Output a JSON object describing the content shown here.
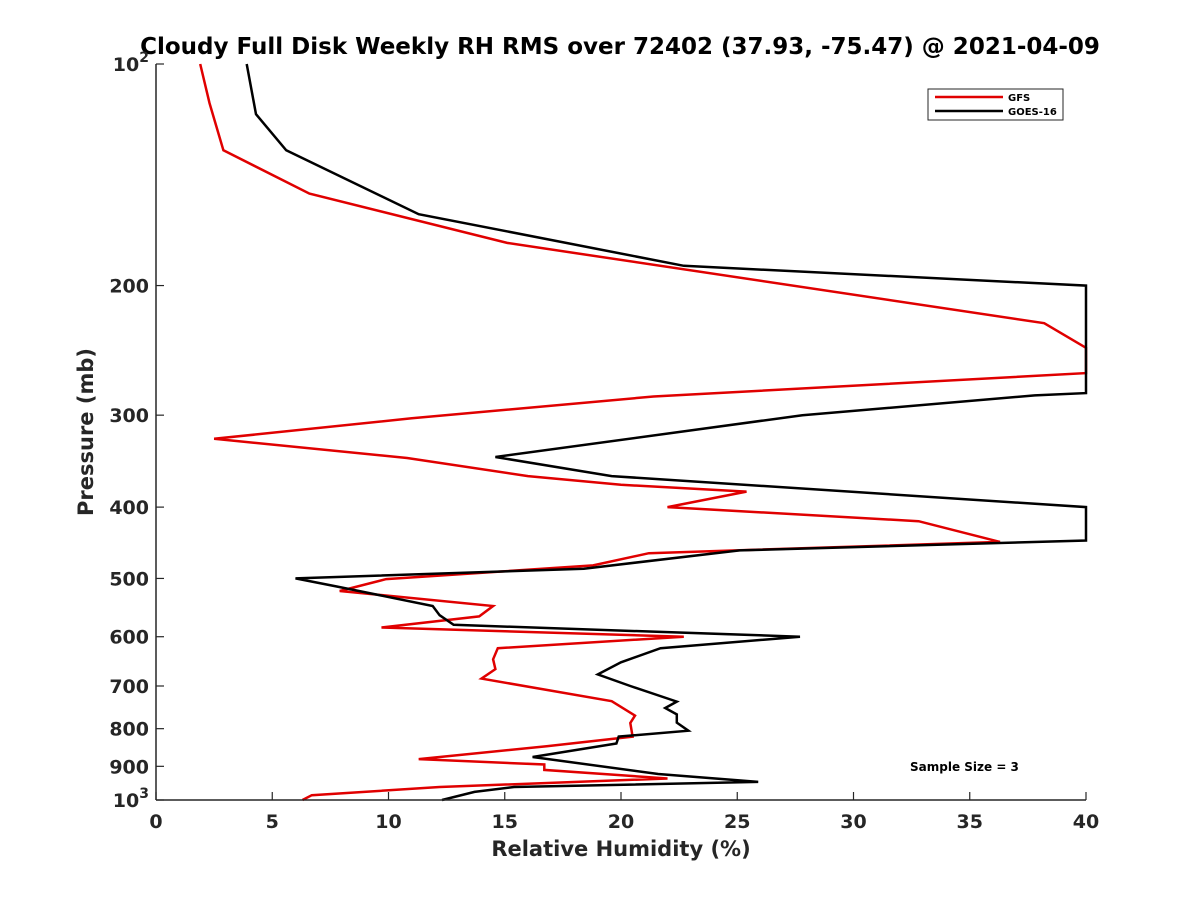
{
  "chart_data": {
    "type": "line",
    "title": "Cloudy Full Disk Weekly RH RMS over 72402 (37.93, -75.47) @ 2021-04-09",
    "xlabel": "Relative Humidity (%)",
    "ylabel": "Pressure (mb)",
    "xlim": [
      0,
      40
    ],
    "ylim": [
      100,
      1000
    ],
    "yscale": "log",
    "y_reversed": true,
    "grid": false,
    "legend_position": "top-right",
    "x_ticks": [
      0,
      5,
      10,
      15,
      20,
      25,
      30,
      35,
      40
    ],
    "x_tick_labels": [
      "0",
      "5",
      "10",
      "15",
      "20",
      "25",
      "30",
      "35",
      "40"
    ],
    "y_ticks": [
      100,
      200,
      300,
      400,
      500,
      600,
      700,
      800,
      900,
      1000
    ],
    "y_tick_labels": [
      {
        "base": "10",
        "exp": "2"
      },
      {
        "text": "200"
      },
      {
        "text": "300"
      },
      {
        "text": "400"
      },
      {
        "text": "500"
      },
      {
        "text": "600"
      },
      {
        "text": "700"
      },
      {
        "text": "800"
      },
      {
        "text": "900"
      },
      {
        "base": "10",
        "exp": "3"
      }
    ],
    "series": [
      {
        "name": "GFS",
        "color": "#e00000",
        "points": [
          [
            1.9,
            100
          ],
          [
            2.3,
            113
          ],
          [
            2.9,
            131
          ],
          [
            6.6,
            150
          ],
          [
            15.1,
            175
          ],
          [
            38.2,
            225
          ],
          [
            40.0,
            243
          ],
          [
            40.0,
            263
          ],
          [
            21.4,
            283
          ],
          [
            11.0,
            303
          ],
          [
            2.5,
            323
          ],
          [
            10.8,
            343
          ],
          [
            16.0,
            363
          ],
          [
            20.0,
            373
          ],
          [
            25.4,
            381
          ],
          [
            22.0,
            400
          ],
          [
            32.8,
            418
          ],
          [
            36.3,
            446
          ],
          [
            21.2,
            462
          ],
          [
            18.8,
            480
          ],
          [
            9.9,
            501
          ],
          [
            7.9,
            520
          ],
          [
            14.5,
            545
          ],
          [
            13.9,
            563
          ],
          [
            9.7,
            583
          ],
          [
            22.7,
            600
          ],
          [
            14.7,
            622
          ],
          [
            14.5,
            644
          ],
          [
            14.6,
            664
          ],
          [
            14.0,
            684
          ],
          [
            19.6,
            734
          ],
          [
            20.6,
            768
          ],
          [
            20.4,
            786
          ],
          [
            20.5,
            820
          ],
          [
            16.8,
            845
          ],
          [
            11.3,
            880
          ],
          [
            16.7,
            895
          ],
          [
            16.7,
            910
          ],
          [
            22.0,
            935
          ],
          [
            12.2,
            960
          ],
          [
            6.7,
            985
          ],
          [
            6.3,
            1000
          ]
        ]
      },
      {
        "name": "GOES-16",
        "color": "#000000",
        "points": [
          [
            3.9,
            100
          ],
          [
            4.3,
            117
          ],
          [
            5.6,
            131
          ],
          [
            11.3,
            160
          ],
          [
            22.7,
            188
          ],
          [
            40.0,
            200
          ],
          [
            40.0,
            280
          ],
          [
            37.8,
            282
          ],
          [
            27.8,
            300
          ],
          [
            14.6,
            342
          ],
          [
            19.6,
            363
          ],
          [
            40.0,
            400
          ],
          [
            40.0,
            444
          ],
          [
            25.1,
            458
          ],
          [
            18.4,
            485
          ],
          [
            6.0,
            500
          ],
          [
            7.8,
            513
          ],
          [
            11.9,
            545
          ],
          [
            12.2,
            561
          ],
          [
            12.8,
            578
          ],
          [
            27.7,
            600
          ],
          [
            21.7,
            622
          ],
          [
            20.0,
            650
          ],
          [
            19.0,
            675
          ],
          [
            20.4,
            700
          ],
          [
            22.4,
            735
          ],
          [
            21.9,
            750
          ],
          [
            22.4,
            765
          ],
          [
            22.4,
            785
          ],
          [
            22.9,
            805
          ],
          [
            19.9,
            820
          ],
          [
            19.8,
            838
          ],
          [
            16.2,
            874
          ],
          [
            21.6,
            922
          ],
          [
            25.9,
            945
          ],
          [
            15.4,
            960
          ],
          [
            13.7,
            975
          ],
          [
            12.3,
            1000
          ]
        ]
      }
    ],
    "annotation": "Sample Size = 3"
  }
}
